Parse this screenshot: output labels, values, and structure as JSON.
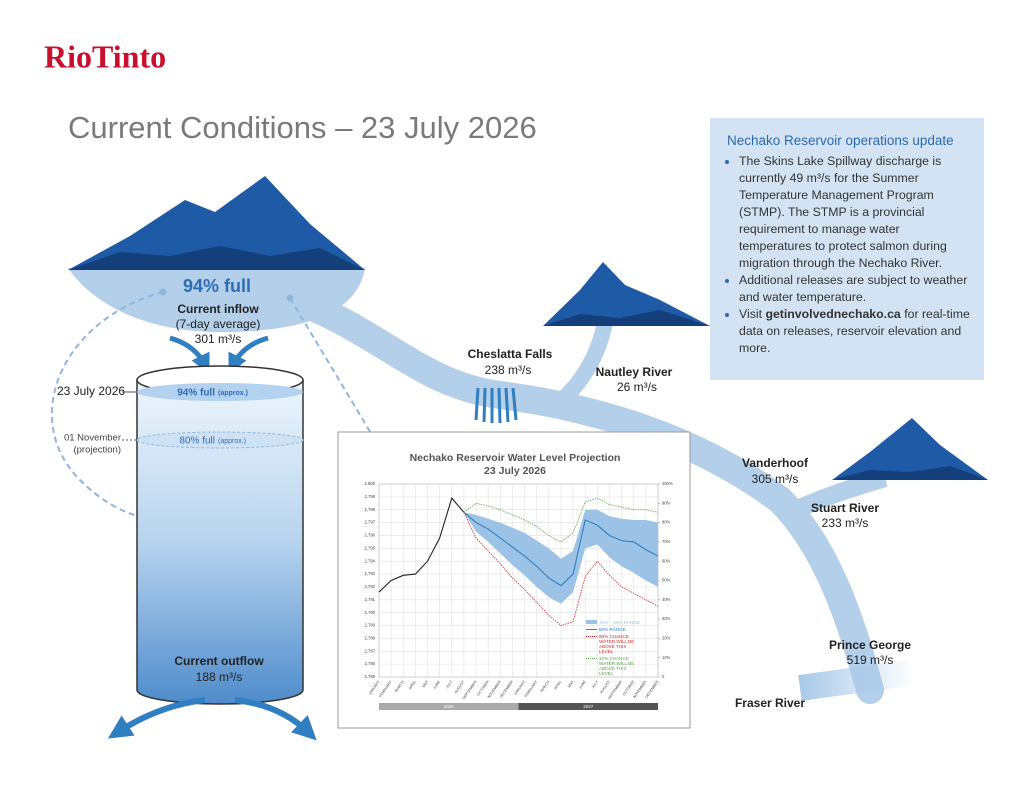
{
  "header": {
    "logo": "RioTinto",
    "title": "Current Conditions – 23 July 2026"
  },
  "reservoir": {
    "fill_label": "94% full",
    "inflow_title": "Current inflow",
    "inflow_note": "(7-day average)",
    "inflow_value": "301 m³/s",
    "date_marker": "23 July 2026",
    "current_level": "94% full",
    "current_level_note": "(approx.)",
    "projection_marker": "01 November",
    "projection_note": "(projection)",
    "projection_level": "80% full",
    "projection_level_note": "(approx.)",
    "outflow_title": "Current outflow",
    "outflow_value": "188 m³/s"
  },
  "rivers": [
    {
      "name": "Cheslatta Falls",
      "value": "238 m³/s"
    },
    {
      "name": "Nautley River",
      "value": "26 m³/s"
    },
    {
      "name": "Vanderhoof",
      "value": "305 m³/s"
    },
    {
      "name": "Stuart River",
      "value": "233 m³/s"
    },
    {
      "name": "Prince George",
      "value": "519 m³/s"
    },
    {
      "name": "Fraser River"
    }
  ],
  "update": {
    "title": "Nechako Reservoir operations update",
    "bullets": [
      "The Skins Lake Spillway discharge is currently 49 m³/s for the Summer Temperature Management Program (STMP). The STMP is a provincial requirement to manage water temperatures to protect salmon during migration through the Nechako River.",
      "Additional releases are subject to weather and water temperature."
    ],
    "visit": {
      "prefix": "Visit",
      "link": "getinvolvednechako.ca",
      "suffix": "for real-time data on releases, reservoir elevation and more."
    }
  },
  "chart_data": {
    "type": "line",
    "title": "Nechako Reservoir Water Level Projection",
    "subtitle": "23 July 2026",
    "categories": [
      "JANUARY",
      "FEBRUARY",
      "MARCH",
      "APRIL",
      "MAY",
      "JUNE",
      "JULY",
      "AUGUST",
      "SEPTEMBER",
      "OCTOBER",
      "NOVEMBER",
      "DECEMBER",
      "JANUARY",
      "FEBRUARY",
      "MARCH",
      "APRIL",
      "MAY",
      "JUNE",
      "JULY",
      "AUGUST",
      "SEPTEMBER",
      "OCTOBER",
      "NOVEMBER",
      "DECEMBER"
    ],
    "years": [
      "2026",
      "2027"
    ],
    "series": [
      {
        "name": "10% – 90% RANGE",
        "color": "#9cc3e6",
        "high": [
          null,
          null,
          null,
          null,
          null,
          null,
          null,
          2797.8,
          2797.6,
          2797.3,
          2797.0,
          2796.6,
          2796.2,
          2795.6,
          2795.0,
          2794.2,
          2794.8,
          2798.0,
          2798.0,
          2797.5,
          2797.3,
          2797.2,
          2797.2,
          2797.0
        ],
        "low": [
          null,
          null,
          null,
          null,
          null,
          null,
          null,
          2797.8,
          2796.3,
          2795.5,
          2794.6,
          2793.7,
          2792.9,
          2792.0,
          2791.2,
          2790.7,
          2791.6,
          2795.0,
          2795.3,
          2794.3,
          2793.6,
          2793.1,
          2792.5,
          2792.0
        ]
      },
      {
        "color": "#222222",
        "values": [
          2791.6,
          2792.5,
          2792.9,
          2793.0,
          2794.0,
          2795.8,
          2798.9,
          2797.8,
          null,
          null,
          null,
          null,
          null,
          null,
          null,
          null,
          null,
          null,
          null,
          null,
          null,
          null,
          null,
          null
        ]
      },
      {
        "name": "50% RANGE",
        "color": "#2f7fc1",
        "values": [
          null,
          null,
          null,
          null,
          null,
          null,
          null,
          2797.8,
          2797.0,
          2796.5,
          2795.8,
          2795.1,
          2794.4,
          2793.6,
          2792.7,
          2792.1,
          2793.0,
          2797.2,
          2796.8,
          2796.0,
          2795.6,
          2795.5,
          2794.9,
          2794.4
        ]
      },
      {
        "name": "90% CHANCE WATER WILL BE ABOVE THIS LEVEL",
        "color": "#d62828",
        "dashed": true,
        "values": [
          null,
          null,
          null,
          null,
          null,
          null,
          null,
          2797.8,
          2795.8,
          2794.8,
          2793.8,
          2792.7,
          2791.8,
          2790.8,
          2789.8,
          2789.0,
          2789.3,
          2792.8,
          2794.0,
          2792.9,
          2792.0,
          2791.5,
          2791.0,
          2790.5
        ]
      },
      {
        "name": "10% CHANCE WATER WILL BE ABOVE THIS LEVEL",
        "color": "#5aa84a",
        "dashed": true,
        "values": [
          null,
          null,
          null,
          null,
          null,
          null,
          null,
          2797.8,
          2798.5,
          2798.3,
          2798.0,
          2797.6,
          2797.2,
          2796.7,
          2796.0,
          2795.5,
          2796.2,
          2798.6,
          2798.9,
          2798.4,
          2798.2,
          2798.0,
          2798.0,
          2797.8
        ]
      }
    ],
    "ylim": [
      2785,
      2800
    ],
    "yticks": [
      {
        "value": 2800,
        "label": "2,800"
      },
      {
        "value": 2799,
        "label": "2,799"
      },
      {
        "value": 2798,
        "label": "2,798"
      },
      {
        "value": 2797,
        "label": "2,797"
      },
      {
        "value": 2796,
        "label": "2,796"
      },
      {
        "value": 2795,
        "label": "2,795"
      },
      {
        "value": 2794,
        "label": "2,794"
      },
      {
        "value": 2793,
        "label": "2,793"
      },
      {
        "value": 2792,
        "label": "2,792"
      },
      {
        "value": 2791,
        "label": "2,791"
      },
      {
        "value": 2790,
        "label": "2,790"
      },
      {
        "value": 2789,
        "label": "2,789"
      },
      {
        "value": 2788,
        "label": "2,788"
      },
      {
        "value": 2787,
        "label": "2,787"
      },
      {
        "value": 2786,
        "label": "2,786"
      },
      {
        "value": 2785,
        "label": "2,785"
      }
    ],
    "y2lim": [
      0,
      100
    ],
    "y2ticks": [
      {
        "value": 100,
        "label": "100%"
      },
      {
        "value": 90,
        "label": "90%"
      },
      {
        "value": 80,
        "label": "80%"
      },
      {
        "value": 70,
        "label": "70%"
      },
      {
        "value": 60,
        "label": "60%"
      },
      {
        "value": 50,
        "label": "50%"
      },
      {
        "value": 40,
        "label": "40%"
      },
      {
        "value": 30,
        "label": "30%"
      },
      {
        "value": 20,
        "label": "20%"
      },
      {
        "value": 10,
        "label": "10%"
      },
      {
        "value": 0,
        "label": "0"
      }
    ],
    "grid": true
  }
}
